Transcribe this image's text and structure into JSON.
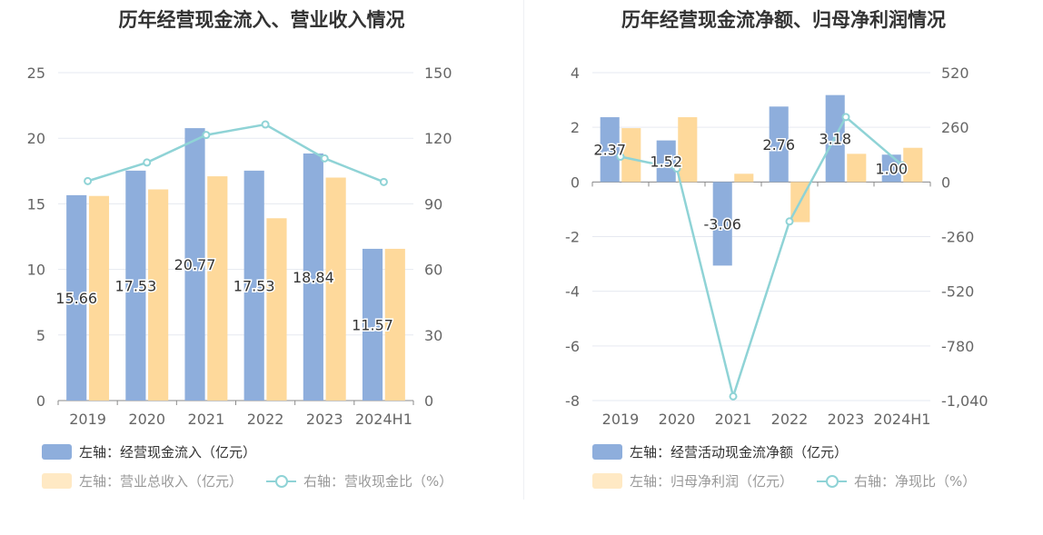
{
  "colors": {
    "bar1": "#8eaedc",
    "bar2": "#fed99b",
    "line": "#8fd3d6",
    "axis": "#8a8a8a",
    "grid": "#e6e9f0",
    "text": "#666666"
  },
  "chart_data": [
    {
      "type": "bar",
      "title": "历年经营现金流入、营业收入情况",
      "categories": [
        "2019",
        "2020",
        "2021",
        "2022",
        "2023",
        "2024H1"
      ],
      "left_axis": {
        "ylim": [
          0,
          25
        ],
        "ticks": [
          "0",
          "5",
          "10",
          "15",
          "20",
          "25"
        ]
      },
      "right_axis": {
        "ylim": [
          0,
          150
        ],
        "ticks": [
          "0",
          "30",
          "60",
          "90",
          "120",
          "150"
        ]
      },
      "series": [
        {
          "name": "左轴：经营现金流入（亿元）",
          "type": "bar",
          "axis": "left",
          "values": [
            15.66,
            17.53,
            20.77,
            17.53,
            18.84,
            11.57
          ],
          "labels": [
            "15.66",
            "17.53",
            "20.77",
            "17.53",
            "18.84",
            "11.57"
          ]
        },
        {
          "name": "左轴：营业总收入（亿元）",
          "type": "bar",
          "axis": "left",
          "values": [
            15.6,
            16.1,
            17.1,
            13.9,
            17.0,
            11.57
          ]
        },
        {
          "name": "右轴：营收现金比（%）",
          "type": "line",
          "axis": "right",
          "values": [
            100.4,
            108.9,
            121.5,
            126.3,
            110.8,
            100.0
          ]
        }
      ]
    },
    {
      "type": "bar",
      "title": "历年经营现金流净额、归母净利润情况",
      "categories": [
        "2019",
        "2020",
        "2021",
        "2022",
        "2023",
        "2024H1"
      ],
      "left_axis": {
        "ylim": [
          -8,
          4
        ],
        "ticks": [
          "-8",
          "-6",
          "-4",
          "-2",
          "0",
          "2",
          "4"
        ]
      },
      "right_axis": {
        "ylim": [
          -1040,
          520
        ],
        "ticks": [
          "-1,040",
          "-780",
          "-520",
          "-260",
          "0",
          "260",
          "520"
        ]
      },
      "series": [
        {
          "name": "左轴：经营活动现金流净额（亿元）",
          "type": "bar",
          "axis": "left",
          "values": [
            2.37,
            1.52,
            -3.06,
            2.76,
            3.18,
            1.0
          ],
          "labels": [
            "2.37",
            "1.52",
            "-3.06",
            "2.76",
            "3.18",
            "1.00"
          ]
        },
        {
          "name": "左轴：归母净利润（亿元）",
          "type": "bar",
          "axis": "left",
          "values": [
            1.97,
            2.37,
            0.3,
            -1.47,
            1.03,
            1.25
          ]
        },
        {
          "name": "右轴：净现比（%）",
          "type": "line",
          "axis": "right",
          "values": [
            120.3,
            64.1,
            -1020.0,
            -187.8,
            308.7,
            80.0
          ]
        }
      ]
    }
  ]
}
